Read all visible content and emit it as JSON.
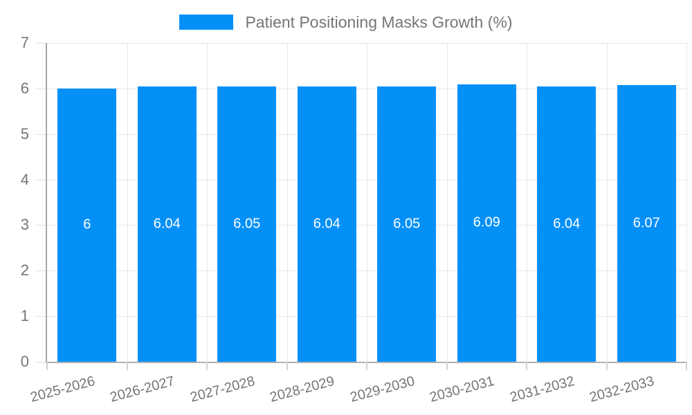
{
  "legend": {
    "series_label": "Patient Positioning Masks Growth (%)"
  },
  "colors": {
    "bar": "#0590f8",
    "grid": "#e6e6e6",
    "axis": "#a6a6a6",
    "tick_text": "#757575",
    "bar_value_text": "#ffffff"
  },
  "chart_data": {
    "type": "bar",
    "title": "",
    "legend_entries": [
      "Patient Positioning Masks Growth (%)"
    ],
    "legend_position": "top-center",
    "categories": [
      "2025-2026",
      "2026-2027",
      "2027-2028",
      "2028-2029",
      "2029-2030",
      "2030-2031",
      "2031-2032",
      "2032-2033"
    ],
    "values": [
      6,
      6.04,
      6.05,
      6.04,
      6.05,
      6.09,
      6.04,
      6.07
    ],
    "value_labels": [
      "6",
      "6.04",
      "6.05",
      "6.04",
      "6.05",
      "6.09",
      "6.04",
      "6.07"
    ],
    "xlabel": "",
    "ylabel": "",
    "ylim": [
      0,
      7
    ],
    "yticks": [
      0,
      1,
      2,
      3,
      4,
      5,
      6,
      7
    ],
    "grid": true,
    "x_tick_rotation_deg": -15
  }
}
